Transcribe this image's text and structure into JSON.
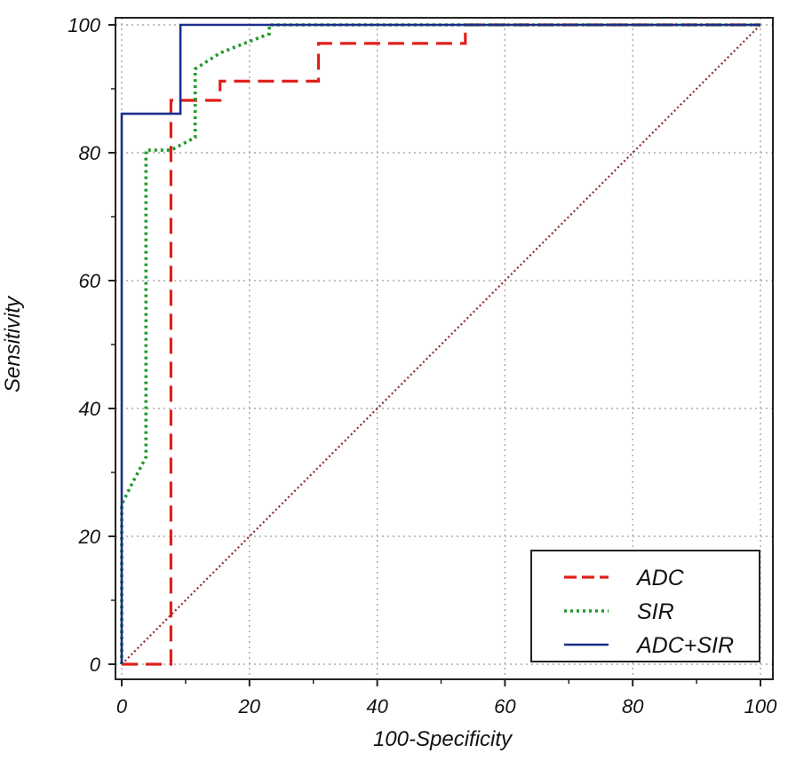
{
  "chart_data": {
    "type": "line",
    "title": "",
    "xlabel": "100-Specificity",
    "ylabel": "Sensitivity",
    "xlim": [
      0,
      100
    ],
    "ylim": [
      0,
      100
    ],
    "xticks": [
      0,
      20,
      40,
      60,
      80,
      100
    ],
    "yticks": [
      0,
      20,
      40,
      60,
      80,
      100
    ],
    "grid": true,
    "legend_position": "bottom-right",
    "series": [
      {
        "name": "ADC",
        "color": "#e0201b",
        "style": "dashed",
        "points": [
          [
            0,
            0
          ],
          [
            7.7,
            0
          ],
          [
            7.7,
            88.2
          ],
          [
            11.5,
            88.2
          ],
          [
            15.4,
            88.2
          ],
          [
            15.4,
            91.2
          ],
          [
            30.8,
            91.2
          ],
          [
            30.8,
            97.1
          ],
          [
            53.8,
            97.1
          ],
          [
            53.8,
            100
          ],
          [
            100,
            100
          ]
        ]
      },
      {
        "name": "SIR",
        "color": "#1e9a2a",
        "style": "dotted",
        "points": [
          [
            0,
            0
          ],
          [
            0,
            25
          ],
          [
            1.5,
            28
          ],
          [
            3.8,
            32.4
          ],
          [
            3.8,
            80.4
          ],
          [
            7.7,
            80.4
          ],
          [
            11.5,
            82.4
          ],
          [
            11.5,
            93.1
          ],
          [
            15.4,
            95.6
          ],
          [
            19.2,
            97.1
          ],
          [
            23.1,
            98.6
          ],
          [
            23.1,
            100
          ],
          [
            100,
            100
          ]
        ]
      },
      {
        "name": "ADC+SIR",
        "color": "#1b2e8a",
        "style": "solid",
        "points": [
          [
            0,
            0
          ],
          [
            0,
            86.1
          ],
          [
            9.2,
            86.1
          ],
          [
            9.2,
            100
          ],
          [
            100,
            100
          ]
        ]
      },
      {
        "name": "",
        "color": "#8b2b2b",
        "style": "reference",
        "points": [
          [
            0,
            0
          ],
          [
            100,
            100
          ]
        ]
      }
    ]
  }
}
